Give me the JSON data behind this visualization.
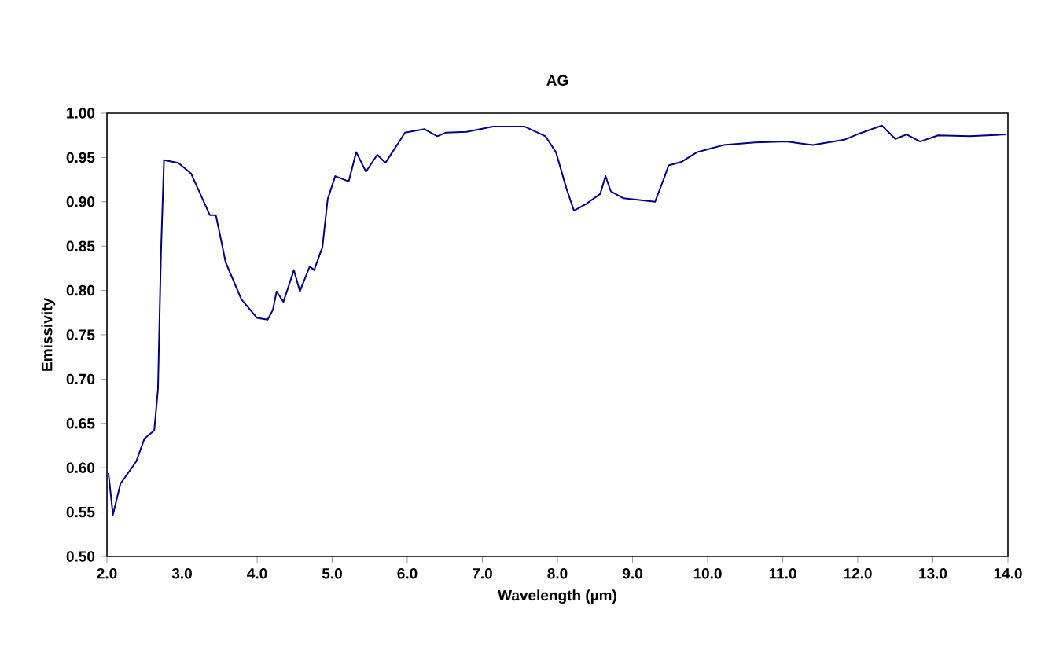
{
  "chart_data": {
    "type": "line",
    "title": "AG",
    "xlabel": "Wavelength (µm)",
    "ylabel": "Emissivity",
    "xlim": [
      2.0,
      14.0
    ],
    "xticks": [
      {
        "value": 2,
        "label": "2.0"
      },
      {
        "value": 3,
        "label": "3.0"
      },
      {
        "value": 4,
        "label": "4.0"
      },
      {
        "value": 5,
        "label": "5.0"
      },
      {
        "value": 6,
        "label": "6.0"
      },
      {
        "value": 7,
        "label": "7.0"
      },
      {
        "value": 8,
        "label": "8.0"
      },
      {
        "value": 9,
        "label": "9.0"
      },
      {
        "value": 10,
        "label": "10.0"
      },
      {
        "value": 11,
        "label": "11.0"
      },
      {
        "value": 12,
        "label": "12.0"
      },
      {
        "value": 13,
        "label": "13.0"
      },
      {
        "value": 14,
        "label": "14.0"
      }
    ],
    "ylim": [
      0.5,
      1.0
    ],
    "yticks": [
      {
        "value": 0.5,
        "label": "0.50"
      },
      {
        "value": 0.55,
        "label": "0.55"
      },
      {
        "value": 0.6,
        "label": "0.60"
      },
      {
        "value": 0.65,
        "label": "0.65"
      },
      {
        "value": 0.7,
        "label": "0.70"
      },
      {
        "value": 0.75,
        "label": "0.75"
      },
      {
        "value": 0.8,
        "label": "0.80"
      },
      {
        "value": 0.85,
        "label": "0.85"
      },
      {
        "value": 0.9,
        "label": "0.90"
      },
      {
        "value": 0.95,
        "label": "0.95"
      },
      {
        "value": 1.0,
        "label": "1.00"
      }
    ],
    "grid": false,
    "marker": "none",
    "line_style": "solid",
    "series": [
      {
        "color": "#000080",
        "x": [
          2.02,
          2.08,
          2.18,
          2.39,
          2.5,
          2.63,
          2.68,
          2.72,
          2.76,
          2.95,
          3.12,
          3.37,
          3.45,
          3.51,
          3.58,
          3.79,
          4.0,
          4.14,
          4.21,
          4.26,
          4.35,
          4.49,
          4.57,
          4.7,
          4.76,
          4.87,
          4.94,
          5.04,
          5.22,
          5.32,
          5.45,
          5.6,
          5.71,
          5.97,
          6.23,
          6.4,
          6.51,
          6.79,
          7.14,
          7.56,
          7.84,
          7.98,
          8.12,
          8.22,
          8.39,
          8.57,
          8.64,
          8.71,
          8.88,
          9.3,
          9.43,
          9.48,
          9.65,
          9.86,
          9.99,
          10.21,
          10.63,
          11.05,
          11.4,
          11.82,
          12.02,
          12.32,
          12.5,
          12.65,
          12.83,
          13.07,
          13.49,
          13.98
        ],
        "values": [
          0.594,
          0.547,
          0.582,
          0.607,
          0.633,
          0.642,
          0.689,
          0.843,
          0.947,
          0.944,
          0.932,
          0.885,
          0.885,
          0.861,
          0.832,
          0.79,
          0.769,
          0.767,
          0.778,
          0.799,
          0.787,
          0.823,
          0.799,
          0.827,
          0.823,
          0.849,
          0.903,
          0.929,
          0.923,
          0.956,
          0.934,
          0.953,
          0.944,
          0.978,
          0.982,
          0.974,
          0.978,
          0.979,
          0.985,
          0.985,
          0.974,
          0.956,
          0.915,
          0.89,
          0.898,
          0.909,
          0.929,
          0.912,
          0.904,
          0.9,
          0.929,
          0.941,
          0.945,
          0.956,
          0.959,
          0.964,
          0.967,
          0.968,
          0.964,
          0.97,
          0.977,
          0.986,
          0.971,
          0.976,
          0.968,
          0.975,
          0.974,
          0.976
        ]
      }
    ]
  }
}
